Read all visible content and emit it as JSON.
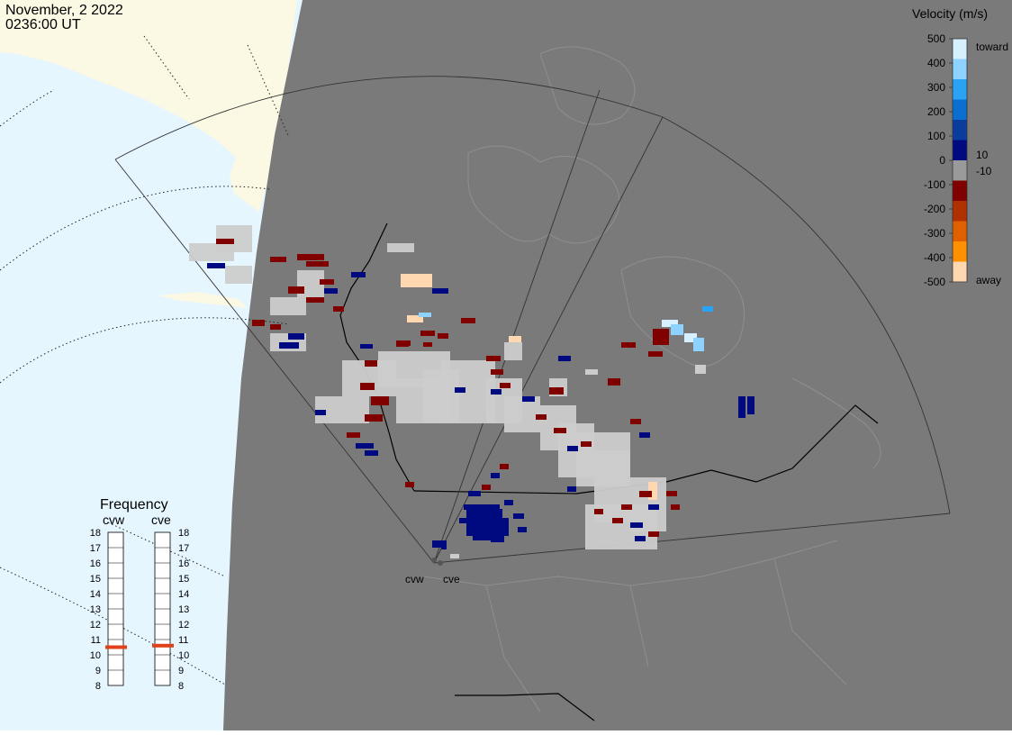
{
  "header": {
    "date": "November, 2 2022",
    "time": "0236:00 UT"
  },
  "colorbar": {
    "title": "Velocity (m/s)",
    "ticks": [
      "500",
      "400",
      "300",
      "200",
      "100",
      "0",
      "-100",
      "-200",
      "-300",
      "-400",
      "-500"
    ],
    "side_labels": {
      "toward": "toward",
      "away": "away",
      "plus": "10",
      "minus": "-10"
    },
    "colors_top_to_bottom": [
      "#d7f0ff",
      "#8ed3ff",
      "#2aa3f5",
      "#0a6fd1",
      "#0a3c9e",
      "#000a80",
      "#9a9a9a",
      "#800000",
      "#b03000",
      "#e06000",
      "#ff9000",
      "#ffd7b0"
    ]
  },
  "radars": {
    "cvw": "cvw",
    "cve": "cve"
  },
  "frequency": {
    "title": "Frequency",
    "left_label": "cvw",
    "right_label": "cve",
    "levels": [
      "18",
      "17",
      "16",
      "15",
      "14",
      "13",
      "12",
      "11",
      "10",
      "9",
      "8"
    ],
    "cvw_value": 10.5,
    "cve_value": 10.6,
    "marker_color": "#e0401a"
  },
  "map_colors": {
    "ocean": "#e6f6ff",
    "land_outside": "#fbf8e3",
    "fov_background": "#7a7a7a",
    "ground_scatter": "#cccccc"
  }
}
